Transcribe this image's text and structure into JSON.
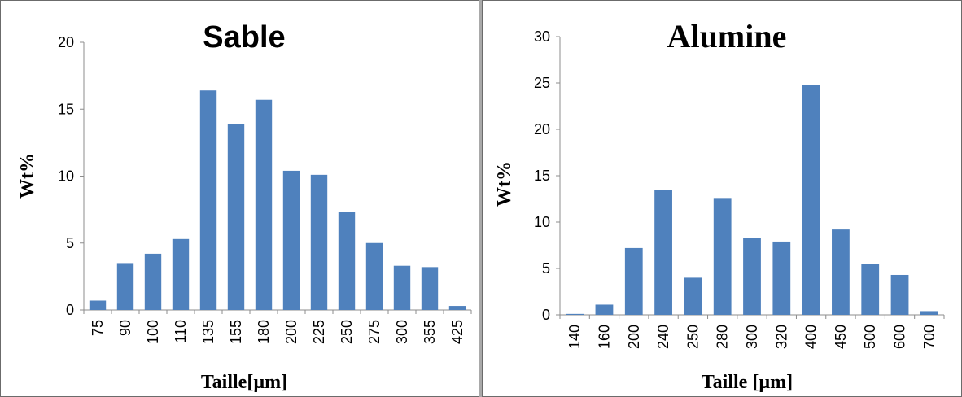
{
  "chart_data": [
    {
      "type": "bar",
      "title": "Sable",
      "xlabel": "Taille[µm]",
      "ylabel": "Wt%",
      "ylim": [
        0,
        20
      ],
      "yticks": [
        0,
        5,
        10,
        15,
        20
      ],
      "categories": [
        "75",
        "90",
        "100",
        "110",
        "135",
        "155",
        "180",
        "200",
        "225",
        "250",
        "275",
        "300",
        "355",
        "425"
      ],
      "values": [
        0.7,
        3.5,
        4.2,
        5.3,
        16.4,
        13.9,
        15.7,
        10.4,
        10.1,
        7.3,
        5.0,
        3.3,
        3.2,
        0.3
      ],
      "color": "#4f81bd",
      "grid": false,
      "legend": "none"
    },
    {
      "type": "bar",
      "title": "Alumine",
      "xlabel": "Taille [µm]",
      "ylabel": "Wt%",
      "ylim": [
        0,
        30
      ],
      "yticks": [
        0,
        5,
        10,
        15,
        20,
        25,
        30
      ],
      "categories": [
        "140",
        "160",
        "200",
        "240",
        "250",
        "280",
        "300",
        "320",
        "400",
        "450",
        "500",
        "600",
        "700"
      ],
      "values": [
        0.1,
        1.1,
        7.2,
        13.5,
        4.0,
        12.6,
        8.3,
        7.9,
        24.8,
        9.2,
        5.5,
        4.3,
        0.4
      ],
      "color": "#4f81bd",
      "grid": false,
      "legend": "none"
    }
  ]
}
